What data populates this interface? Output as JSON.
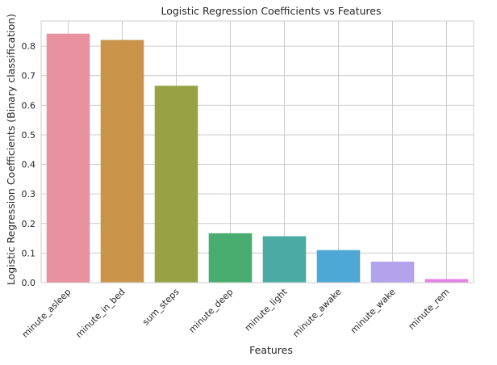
{
  "chart_data": {
    "type": "bar",
    "title": "Logistic Regression Coefficients vs Features",
    "xlabel": "Features",
    "ylabel": "Logistic Regression Coefficients (Binary classification)",
    "categories": [
      "minute_asleep",
      "minute_in_bed",
      "sum_steps",
      "minute_deep",
      "minute_light",
      "minute_awake",
      "minute_wake",
      "minute_rem"
    ],
    "values": [
      0.842,
      0.821,
      0.666,
      0.167,
      0.157,
      0.11,
      0.071,
      0.012
    ],
    "colors": [
      "#e8919f",
      "#c9944a",
      "#97a244",
      "#48ad6e",
      "#4aaba3",
      "#4ea8d6",
      "#b3a2ec",
      "#e383e5"
    ],
    "ylim": [
      0,
      0.885
    ],
    "yticks": [
      "0.0",
      "0.1",
      "0.2",
      "0.3",
      "0.4",
      "0.5",
      "0.6",
      "0.7",
      "0.8"
    ],
    "grid": true,
    "background_color": "#ffffff",
    "grid_color": "#cccccc"
  }
}
